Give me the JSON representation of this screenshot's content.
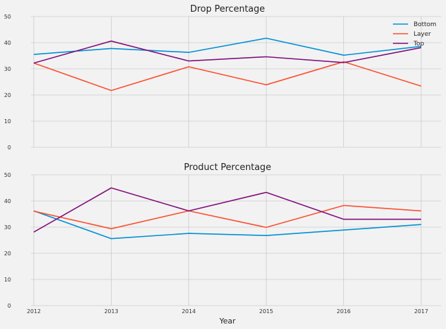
{
  "chart_data": [
    {
      "type": "line",
      "title": "Drop Percentage",
      "xlabel": "",
      "ylabel": "",
      "x": [
        2012,
        2013,
        2014,
        2015,
        2016,
        2017
      ],
      "ylim": [
        0,
        50
      ],
      "yticks": [
        "0",
        "10",
        "20",
        "30",
        "40",
        "50"
      ],
      "grid": true,
      "legend": "top-right",
      "series": [
        {
          "name": "Bottom",
          "color": "#008fd5",
          "values": [
            35.5,
            37.8,
            36.3,
            41.7,
            35.2,
            38.6
          ]
        },
        {
          "name": "Layer",
          "color": "#fc4f30",
          "values": [
            32.2,
            21.7,
            30.8,
            23.9,
            32.7,
            23.4
          ]
        },
        {
          "name": "Top",
          "color": "#810f7c",
          "values": [
            32.2,
            40.6,
            33.0,
            34.6,
            32.4,
            38.1
          ]
        }
      ]
    },
    {
      "type": "line",
      "title": "Product Percentage",
      "xlabel": "Year",
      "ylabel": "",
      "x": [
        2012,
        2013,
        2014,
        2015,
        2016,
        2017
      ],
      "xticks": [
        "2012",
        "2013",
        "2014",
        "2015",
        "2016",
        "2017"
      ],
      "ylim": [
        0,
        50
      ],
      "yticks": [
        "0",
        "10",
        "20",
        "30",
        "40",
        "50"
      ],
      "grid": true,
      "series": [
        {
          "name": "Bottom",
          "color": "#008fd5",
          "values": [
            36.2,
            25.6,
            27.6,
            26.8,
            28.9,
            31.0
          ]
        },
        {
          "name": "Layer",
          "color": "#fc4f30",
          "values": [
            36.1,
            29.4,
            36.2,
            29.9,
            38.3,
            36.2
          ]
        },
        {
          "name": "Top",
          "color": "#810f7c",
          "values": [
            28.1,
            45.0,
            36.2,
            43.3,
            33.0,
            33.0
          ]
        }
      ]
    }
  ]
}
